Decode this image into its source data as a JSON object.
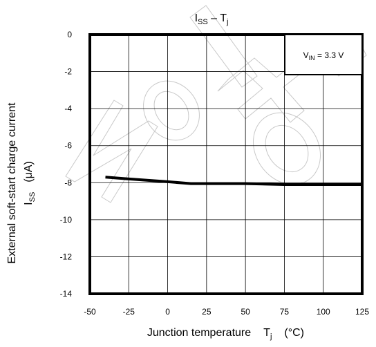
{
  "watermark": "Not for new design",
  "chart_data": {
    "type": "line",
    "title_main": "I",
    "title_sub": "SS",
    "title_dash": " – T",
    "title_sub2": "j",
    "xlabel_main": "Junction temperature",
    "xlabel_var": "T",
    "xlabel_var_sub": "j",
    "xlabel_unit": "(°C)",
    "ylabel_line1": "External soft-start charge current",
    "ylabel_var": "I",
    "ylabel_var_sub": "SS",
    "ylabel_unit": "(μA)",
    "xlim": [
      -50,
      125
    ],
    "ylim": [
      -14,
      0
    ],
    "xticks": [
      -50,
      -25,
      0,
      25,
      50,
      75,
      100,
      125
    ],
    "yticks": [
      0,
      -2,
      -4,
      -6,
      -8,
      -10,
      -12,
      -14
    ],
    "grid": true,
    "legend_placement": "top-right",
    "annotation": {
      "var": "V",
      "var_sub": "IN",
      "text": " = 3.3 V"
    },
    "series": [
      {
        "x": [
          -40,
          -25,
          0,
          15,
          25,
          50,
          75,
          100,
          125
        ],
        "y": [
          -7.7,
          -7.8,
          -7.95,
          -8.05,
          -8.05,
          -8.05,
          -8.1,
          -8.1,
          -8.1
        ]
      }
    ]
  }
}
